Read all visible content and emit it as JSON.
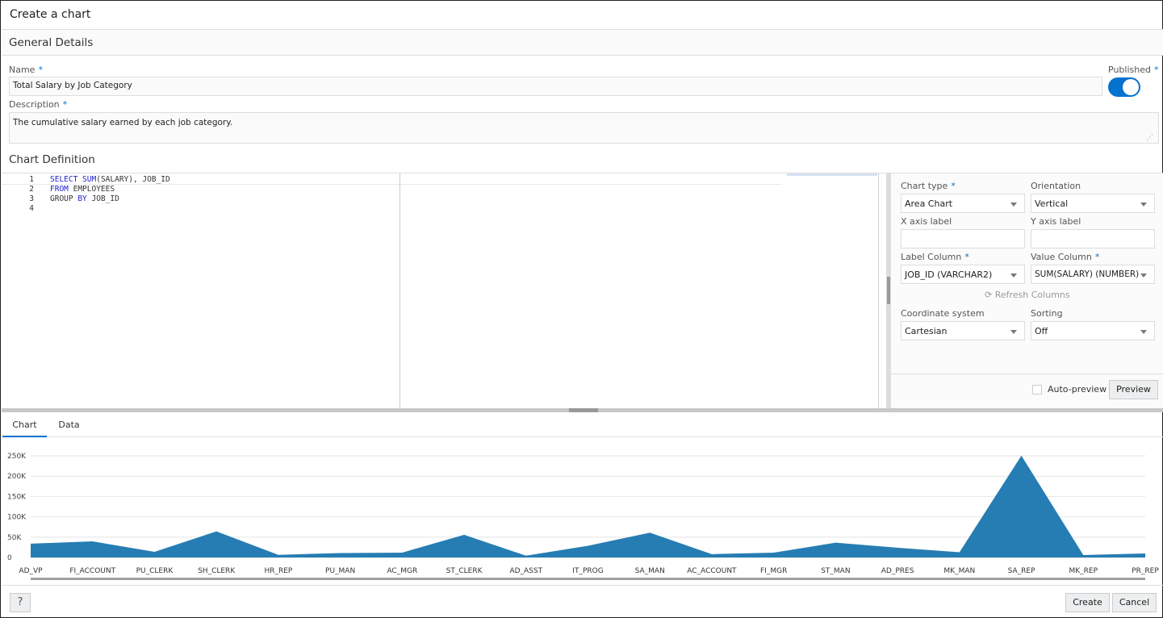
{
  "dialog": {
    "title": "Create a chart"
  },
  "general": {
    "header": "General Details",
    "name_label": "Name",
    "name_value": "Total Salary by Job Category",
    "published_label": "Published",
    "published": true,
    "description_label": "Description",
    "description_value": "The cumulative salary earned by each job category.",
    "required_mark": "*"
  },
  "definition": {
    "header": "Chart Definition",
    "code_lines": [
      {
        "n": "1",
        "parts": [
          [
            "kw",
            "SELECT "
          ],
          [
            "kw",
            "SUM"
          ],
          [
            "",
            "(SALARY), JOB_ID"
          ]
        ]
      },
      {
        "n": "2",
        "parts": [
          [
            "kw",
            "FROM "
          ],
          [
            "",
            "EMPLOYEES"
          ]
        ]
      },
      {
        "n": "3",
        "parts": [
          [
            "",
            "GROUP "
          ],
          [
            "kw",
            "BY "
          ],
          [
            "",
            "JOB_ID"
          ]
        ]
      },
      {
        "n": "4",
        "parts": []
      }
    ]
  },
  "settings": {
    "chart_type_label": "Chart type",
    "chart_type": "Area Chart",
    "orientation_label": "Orientation",
    "orientation": "Vertical",
    "x_axis_label": "X axis label",
    "x_axis_value": "",
    "y_axis_label": "Y axis label",
    "y_axis_value": "",
    "label_column_label": "Label Column",
    "label_column": "JOB_ID (VARCHAR2)",
    "value_column_label": "Value Column",
    "value_column": "SUM(SALARY) (NUMBER)",
    "refresh_label": "Refresh Columns",
    "coord_label": "Coordinate system",
    "coord": "Cartesian",
    "sorting_label": "Sorting",
    "sorting": "Off",
    "auto_preview_label": "Auto-preview",
    "auto_preview": false,
    "preview_button": "Preview"
  },
  "tabs": [
    {
      "label": "Chart",
      "active": true
    },
    {
      "label": "Data",
      "active": false
    }
  ],
  "footer": {
    "create": "Create",
    "cancel": "Cancel"
  },
  "colors": {
    "accent": "#0572ce",
    "area": "#267db3"
  },
  "chart_data": {
    "type": "area",
    "grid": true,
    "categories": [
      "AD_VP",
      "FI_ACCOUNT",
      "PU_CLERK",
      "SH_CLERK",
      "HR_REP",
      "PU_MAN",
      "AC_MGR",
      "ST_CLERK",
      "AD_ASST",
      "IT_PROG",
      "SA_MAN",
      "AC_ACCOUNT",
      "FI_MGR",
      "ST_MAN",
      "AD_PRES",
      "MK_MAN",
      "SA_REP",
      "MK_REP",
      "PR_REP"
    ],
    "values": [
      34000,
      39600,
      13900,
      64300,
      6500,
      11000,
      12008,
      55700,
      4400,
      28800,
      61000,
      8300,
      12008,
      36400,
      24000,
      13000,
      250500,
      6000,
      10000
    ],
    "yticks": [
      "0",
      "50K",
      "100K",
      "150K",
      "200K",
      "250K"
    ],
    "ylim": [
      0,
      250000
    ]
  }
}
